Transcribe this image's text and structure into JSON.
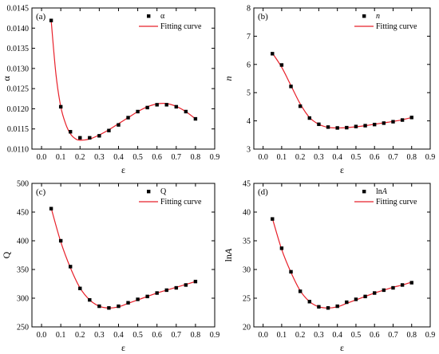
{
  "chart_data": [
    {
      "type": "scatter",
      "panel_label": "(a)",
      "xlabel": "ε",
      "ylabel": "α",
      "xlim": [
        -0.05,
        0.9
      ],
      "ylim": [
        0.011,
        0.0145
      ],
      "xticks": [
        0.0,
        0.1,
        0.2,
        0.3,
        0.4,
        0.5,
        0.6,
        0.7,
        0.8,
        0.9
      ],
      "xtick_labels": [
        "0.0",
        "0.1",
        "0.2",
        "0.3",
        "0.4",
        "0.5",
        "0.6",
        "0.7",
        "0.8",
        "0.9"
      ],
      "yticks": [
        0.011,
        0.0115,
        0.012,
        0.0125,
        0.013,
        0.0135,
        0.014,
        0.0145
      ],
      "ytick_labels": [
        "0.0110",
        "0.0115",
        "0.0120",
        "0.0125",
        "0.0130",
        "0.0135",
        "0.0140",
        "0.0145"
      ],
      "legend_position": "top-right",
      "series": [
        {
          "name": "α",
          "kind": "points",
          "x": [
            0.05,
            0.1,
            0.15,
            0.2,
            0.25,
            0.3,
            0.35,
            0.4,
            0.45,
            0.5,
            0.55,
            0.6,
            0.65,
            0.7,
            0.75,
            0.8
          ],
          "y": [
            0.01419,
            0.01205,
            0.01143,
            0.01128,
            0.01128,
            0.01133,
            0.01146,
            0.0116,
            0.01178,
            0.01193,
            0.01203,
            0.0121,
            0.0121,
            0.01205,
            0.01193,
            0.01175
          ]
        },
        {
          "name": "Fitting curve",
          "kind": "line",
          "color": "#e8202a",
          "x": [
            0.05,
            0.075,
            0.1,
            0.125,
            0.15,
            0.175,
            0.2,
            0.25,
            0.3,
            0.35,
            0.4,
            0.45,
            0.5,
            0.55,
            0.6,
            0.65,
            0.7,
            0.75,
            0.8
          ],
          "y": [
            0.01419,
            0.01285,
            0.01205,
            0.01163,
            0.01138,
            0.01126,
            0.01122,
            0.01125,
            0.01135,
            0.01148,
            0.01163,
            0.01178,
            0.01193,
            0.01205,
            0.01212,
            0.01213,
            0.01206,
            0.01193,
            0.01175
          ]
        }
      ]
    },
    {
      "type": "scatter",
      "panel_label": "(b)",
      "xlabel": "ε",
      "ylabel": "n",
      "xlim": [
        -0.05,
        0.9
      ],
      "ylim": [
        3,
        8
      ],
      "xticks": [
        0.0,
        0.1,
        0.2,
        0.3,
        0.4,
        0.5,
        0.6,
        0.7,
        0.8,
        0.9
      ],
      "xtick_labels": [
        "0.0",
        "0.1",
        "0.2",
        "0.3",
        "0.4",
        "0.5",
        "0.6",
        "0.7",
        "0.8",
        "0.9"
      ],
      "yticks": [
        3,
        4,
        5,
        6,
        7,
        8
      ],
      "ytick_labels": [
        "3",
        "4",
        "5",
        "6",
        "7",
        "8"
      ],
      "legend_position": "top-right",
      "series": [
        {
          "name": "n",
          "kind": "points",
          "x": [
            0.05,
            0.1,
            0.15,
            0.2,
            0.25,
            0.3,
            0.35,
            0.4,
            0.45,
            0.5,
            0.55,
            0.6,
            0.65,
            0.7,
            0.75,
            0.8
          ],
          "y": [
            6.38,
            5.98,
            5.22,
            4.52,
            4.1,
            3.88,
            3.78,
            3.75,
            3.76,
            3.8,
            3.83,
            3.87,
            3.92,
            3.97,
            4.03,
            4.12
          ]
        },
        {
          "name": "Fitting curve",
          "kind": "line",
          "color": "#e8202a",
          "x": [
            0.05,
            0.1,
            0.15,
            0.2,
            0.25,
            0.3,
            0.35,
            0.4,
            0.45,
            0.5,
            0.55,
            0.6,
            0.65,
            0.7,
            0.75,
            0.8
          ],
          "y": [
            6.4,
            5.9,
            5.25,
            4.6,
            4.12,
            3.88,
            3.77,
            3.75,
            3.76,
            3.79,
            3.83,
            3.88,
            3.93,
            3.98,
            4.04,
            4.12
          ]
        }
      ]
    },
    {
      "type": "scatter",
      "panel_label": "(c)",
      "xlabel": "ε",
      "ylabel": "Q",
      "xlim": [
        -0.05,
        0.9
      ],
      "ylim": [
        250,
        500
      ],
      "xticks": [
        0.0,
        0.1,
        0.2,
        0.3,
        0.4,
        0.5,
        0.6,
        0.7,
        0.8,
        0.9
      ],
      "xtick_labels": [
        "0.0",
        "0.1",
        "0.2",
        "0.3",
        "0.4",
        "0.5",
        "0.6",
        "0.7",
        "0.8",
        "0.9"
      ],
      "yticks": [
        250,
        300,
        350,
        400,
        450,
        500
      ],
      "ytick_labels": [
        "250",
        "300",
        "350",
        "400",
        "450",
        "500"
      ],
      "legend_position": "top-right",
      "series": [
        {
          "name": "Q",
          "kind": "points",
          "x": [
            0.05,
            0.1,
            0.15,
            0.2,
            0.25,
            0.3,
            0.35,
            0.4,
            0.45,
            0.5,
            0.55,
            0.6,
            0.65,
            0.7,
            0.75,
            0.8
          ],
          "y": [
            456,
            400,
            355,
            317,
            297,
            286,
            283,
            286,
            292,
            298,
            303,
            309,
            314,
            318,
            323,
            329
          ]
        },
        {
          "name": "Fitting curve",
          "kind": "line",
          "color": "#e8202a",
          "x": [
            0.05,
            0.1,
            0.15,
            0.2,
            0.25,
            0.3,
            0.35,
            0.4,
            0.45,
            0.5,
            0.55,
            0.6,
            0.65,
            0.7,
            0.75,
            0.8
          ],
          "y": [
            457,
            398,
            353,
            318,
            297,
            286,
            283,
            285,
            291,
            297,
            303,
            309,
            314,
            319,
            324,
            329
          ]
        }
      ]
    },
    {
      "type": "scatter",
      "panel_label": "(d)",
      "xlabel": "ε",
      "ylabel": "lnA",
      "xlim": [
        -0.05,
        0.9
      ],
      "ylim": [
        20,
        45
      ],
      "xticks": [
        0.0,
        0.1,
        0.2,
        0.3,
        0.4,
        0.5,
        0.6,
        0.7,
        0.8,
        0.9
      ],
      "xtick_labels": [
        "0.0",
        "0.1",
        "0.2",
        "0.3",
        "0.4",
        "0.5",
        "0.6",
        "0.7",
        "0.8",
        "0.9"
      ],
      "yticks": [
        20,
        25,
        30,
        35,
        40,
        45
      ],
      "ytick_labels": [
        "20",
        "25",
        "30",
        "35",
        "40",
        "45"
      ],
      "legend_position": "top-right",
      "series": [
        {
          "name": "lnA",
          "kind": "points",
          "x": [
            0.05,
            0.1,
            0.15,
            0.2,
            0.25,
            0.3,
            0.35,
            0.4,
            0.45,
            0.5,
            0.55,
            0.6,
            0.65,
            0.7,
            0.75,
            0.8
          ],
          "y": [
            38.8,
            33.7,
            29.6,
            26.2,
            24.4,
            23.5,
            23.3,
            23.6,
            24.3,
            24.8,
            25.3,
            25.9,
            26.4,
            26.8,
            27.3,
            27.7
          ]
        },
        {
          "name": "Fitting curve",
          "kind": "line",
          "color": "#e8202a",
          "x": [
            0.05,
            0.1,
            0.15,
            0.2,
            0.25,
            0.3,
            0.35,
            0.4,
            0.45,
            0.5,
            0.55,
            0.6,
            0.65,
            0.7,
            0.75,
            0.8
          ],
          "y": [
            38.9,
            33.5,
            29.5,
            26.3,
            24.4,
            23.5,
            23.3,
            23.5,
            24.1,
            24.7,
            25.3,
            25.9,
            26.4,
            26.9,
            27.3,
            27.8
          ]
        }
      ]
    }
  ]
}
